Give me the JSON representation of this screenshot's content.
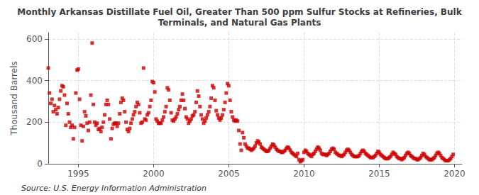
{
  "chart_data": {
    "type": "scatter",
    "title": "Monthly Arkansas Distillate Fuel Oil, Greater Than 500 ppm Sulfur Stocks at Refineries, Bulk\nTerminals, and Natural Gas Plants",
    "ylabel": "Thousand Barrels",
    "annotations": [
      "Source: U.S. Energy Information Administration"
    ],
    "color": "#cc0000",
    "marker": "square",
    "grid": true,
    "xlim": [
      1993.0,
      2020.5
    ],
    "xticks": [
      1995,
      2000,
      2005,
      2010,
      2015,
      2020
    ],
    "ylim": [
      0,
      630
    ],
    "yticks": [
      0,
      200,
      400,
      600
    ],
    "x": [
      1993.0,
      1993.083,
      1993.167,
      1993.25,
      1993.333,
      1993.417,
      1993.5,
      1993.583,
      1993.667,
      1993.75,
      1993.833,
      1993.917,
      1994.0,
      1994.083,
      1994.167,
      1994.25,
      1994.333,
      1994.417,
      1994.5,
      1994.583,
      1994.667,
      1994.75,
      1994.833,
      1994.917,
      1995.0,
      1995.083,
      1995.167,
      1995.25,
      1995.333,
      1995.417,
      1995.5,
      1995.583,
      1995.667,
      1995.75,
      1995.833,
      1995.917,
      1996.0,
      1996.083,
      1996.167,
      1996.25,
      1996.333,
      1996.417,
      1996.5,
      1996.583,
      1996.667,
      1996.75,
      1996.833,
      1996.917,
      1997.0,
      1997.083,
      1997.167,
      1997.25,
      1997.333,
      1997.417,
      1997.5,
      1997.583,
      1997.667,
      1997.75,
      1997.833,
      1997.917,
      1998.0,
      1998.083,
      1998.167,
      1998.25,
      1998.333,
      1998.417,
      1998.5,
      1998.583,
      1998.667,
      1998.75,
      1998.833,
      1998.917,
      1999.0,
      1999.083,
      1999.167,
      1999.25,
      1999.333,
      1999.417,
      1999.5,
      1999.583,
      1999.667,
      1999.75,
      1999.833,
      1999.917,
      2000.0,
      2000.083,
      2000.167,
      2000.25,
      2000.333,
      2000.417,
      2000.5,
      2000.583,
      2000.667,
      2000.75,
      2000.833,
      2000.917,
      2001.0,
      2001.083,
      2001.167,
      2001.25,
      2001.333,
      2001.417,
      2001.5,
      2001.583,
      2001.667,
      2001.75,
      2001.833,
      2001.917,
      2002.0,
      2002.083,
      2002.167,
      2002.25,
      2002.333,
      2002.417,
      2002.5,
      2002.583,
      2002.667,
      2002.75,
      2002.833,
      2002.917,
      2003.0,
      2003.083,
      2003.167,
      2003.25,
      2003.333,
      2003.417,
      2003.5,
      2003.583,
      2003.667,
      2003.75,
      2003.833,
      2003.917,
      2004.0,
      2004.083,
      2004.167,
      2004.25,
      2004.333,
      2004.417,
      2004.5,
      2004.583,
      2004.667,
      2004.75,
      2004.833,
      2004.917,
      2005.0,
      2005.083,
      2005.167,
      2005.25,
      2005.333,
      2005.417,
      2005.5,
      2005.583,
      2005.667,
      2005.75,
      2005.833,
      2005.917,
      2006.0,
      2006.083,
      2006.167,
      2006.25,
      2006.333,
      2006.417,
      2006.5,
      2006.583,
      2006.667,
      2006.75,
      2006.833,
      2006.917,
      2007.0,
      2007.083,
      2007.167,
      2007.25,
      2007.333,
      2007.417,
      2007.5,
      2007.583,
      2007.667,
      2007.75,
      2007.833,
      2007.917,
      2008.0,
      2008.083,
      2008.167,
      2008.25,
      2008.333,
      2008.417,
      2008.5,
      2008.583,
      2008.667,
      2008.75,
      2008.833,
      2008.917,
      2009.0,
      2009.083,
      2009.167,
      2009.25,
      2009.333,
      2009.417,
      2009.5,
      2009.583,
      2009.667,
      2009.75,
      2009.833,
      2009.917,
      2010.0,
      2010.083,
      2010.167,
      2010.25,
      2010.333,
      2010.417,
      2010.5,
      2010.583,
      2010.667,
      2010.75,
      2010.833,
      2010.917,
      2011.0,
      2011.083,
      2011.167,
      2011.25,
      2011.333,
      2011.417,
      2011.5,
      2011.583,
      2011.667,
      2011.75,
      2011.833,
      2011.917,
      2012.0,
      2012.083,
      2012.167,
      2012.25,
      2012.333,
      2012.417,
      2012.5,
      2012.583,
      2012.667,
      2012.75,
      2012.833,
      2012.917,
      2013.0,
      2013.083,
      2013.167,
      2013.25,
      2013.333,
      2013.417,
      2013.5,
      2013.583,
      2013.667,
      2013.75,
      2013.833,
      2013.917,
      2014.0,
      2014.083,
      2014.167,
      2014.25,
      2014.333,
      2014.417,
      2014.5,
      2014.583,
      2014.667,
      2014.75,
      2014.833,
      2014.917,
      2015.0,
      2015.083,
      2015.167,
      2015.25,
      2015.333,
      2015.417,
      2015.5,
      2015.583,
      2015.667,
      2015.75,
      2015.833,
      2015.917,
      2016.0,
      2016.083,
      2016.167,
      2016.25,
      2016.333,
      2016.417,
      2016.5,
      2016.583,
      2016.667,
      2016.75,
      2016.833,
      2016.917,
      2017.0,
      2017.083,
      2017.167,
      2017.25,
      2017.333,
      2017.417,
      2017.5,
      2017.583,
      2017.667,
      2017.75,
      2017.833,
      2017.917,
      2018.0,
      2018.083,
      2018.167,
      2018.25,
      2018.333,
      2018.417,
      2018.5,
      2018.583,
      2018.667,
      2018.75,
      2018.833,
      2018.917,
      2019.0,
      2019.083,
      2019.167,
      2019.25,
      2019.333,
      2019.417,
      2019.5,
      2019.583,
      2019.667,
      2019.75,
      2019.833,
      2019.917
    ],
    "values": [
      460,
      340,
      290,
      310,
      250,
      280,
      260,
      240,
      270,
      310,
      350,
      375,
      370,
      330,
      185,
      290,
      240,
      200,
      175,
      185,
      120,
      175,
      340,
      450,
      455,
      310,
      185,
      110,
      180,
      250,
      230,
      195,
      160,
      200,
      330,
      580,
      285,
      200,
      185,
      195,
      165,
      170,
      155,
      175,
      200,
      235,
      285,
      305,
      285,
      215,
      120,
      170,
      190,
      195,
      195,
      180,
      195,
      240,
      295,
      315,
      305,
      250,
      200,
      165,
      155,
      170,
      195,
      215,
      235,
      250,
      275,
      295,
      285,
      245,
      195,
      200,
      460,
      215,
      210,
      235,
      245,
      275,
      305,
      395,
      390,
      345,
      215,
      205,
      195,
      195,
      195,
      210,
      225,
      250,
      275,
      365,
      355,
      305,
      245,
      210,
      205,
      215,
      225,
      240,
      260,
      275,
      305,
      335,
      305,
      265,
      225,
      215,
      195,
      205,
      215,
      230,
      235,
      250,
      295,
      350,
      325,
      275,
      235,
      215,
      195,
      205,
      220,
      235,
      250,
      275,
      315,
      375,
      365,
      305,
      255,
      235,
      220,
      210,
      220,
      235,
      260,
      295,
      340,
      385,
      375,
      305,
      250,
      225,
      210,
      205,
      210,
      205,
      160,
      95,
      65,
      150,
      125,
      95,
      85,
      75,
      75,
      70,
      65,
      70,
      75,
      85,
      100,
      110,
      105,
      95,
      80,
      75,
      70,
      65,
      60,
      60,
      65,
      75,
      85,
      95,
      90,
      80,
      70,
      65,
      60,
      60,
      55,
      55,
      60,
      65,
      75,
      80,
      75,
      65,
      55,
      50,
      45,
      40,
      35,
      50,
      20,
      10,
      15,
      20,
      55,
      65,
      60,
      50,
      45,
      40,
      35,
      45,
      50,
      60,
      70,
      80,
      75,
      65,
      50,
      45,
      45,
      45,
      40,
      45,
      50,
      60,
      70,
      75,
      70,
      55,
      50,
      45,
      40,
      40,
      35,
      40,
      45,
      55,
      65,
      70,
      65,
      55,
      45,
      40,
      35,
      35,
      35,
      35,
      40,
      50,
      60,
      65,
      60,
      50,
      45,
      40,
      35,
      30,
      30,
      30,
      35,
      40,
      50,
      60,
      55,
      45,
      40,
      35,
      30,
      25,
      25,
      25,
      30,
      35,
      45,
      55,
      50,
      45,
      35,
      30,
      25,
      25,
      20,
      25,
      30,
      40,
      50,
      55,
      50,
      40,
      35,
      30,
      25,
      25,
      20,
      20,
      25,
      30,
      40,
      50,
      45,
      35,
      30,
      25,
      20,
      20,
      20,
      25,
      30,
      40,
      50,
      55,
      50,
      40,
      30,
      25,
      20,
      15,
      15,
      15,
      20,
      25,
      35,
      45
    ]
  }
}
